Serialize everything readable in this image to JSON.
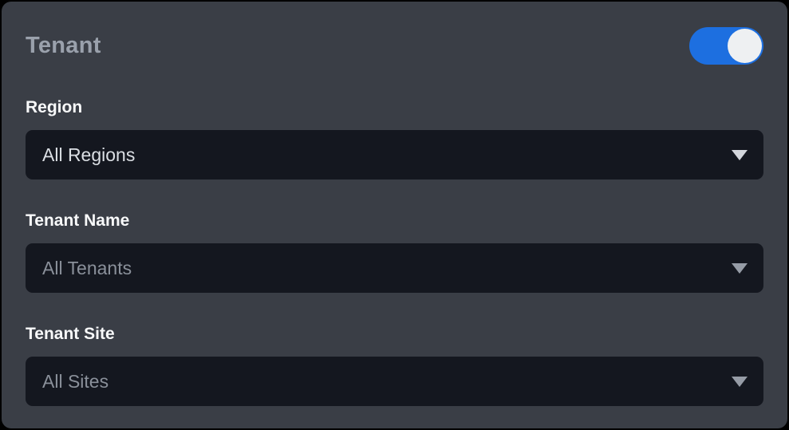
{
  "panel": {
    "title": "Tenant",
    "toggle": {
      "name": "tenant-filter-toggle",
      "state": "on"
    }
  },
  "fields": [
    {
      "label": "Region",
      "value": "All Regions",
      "muted": false
    },
    {
      "label": "Tenant Name",
      "value": "All Tenants",
      "muted": true
    },
    {
      "label": "Tenant Site",
      "value": "All Sites",
      "muted": true
    }
  ],
  "icons": {
    "dropdown_caret": "chevron-down-icon"
  },
  "colors": {
    "page_background": "#000000",
    "panel_background": "#3a3e46",
    "select_background": "#14171f",
    "toggle_on": "#1d6fe0",
    "toggle_knob": "#eef0f2",
    "title_text": "#9aa1ac",
    "label_text": "#f8f9fa",
    "value_text_active": "#dbdfe4",
    "value_text_muted": "#8a909a"
  }
}
